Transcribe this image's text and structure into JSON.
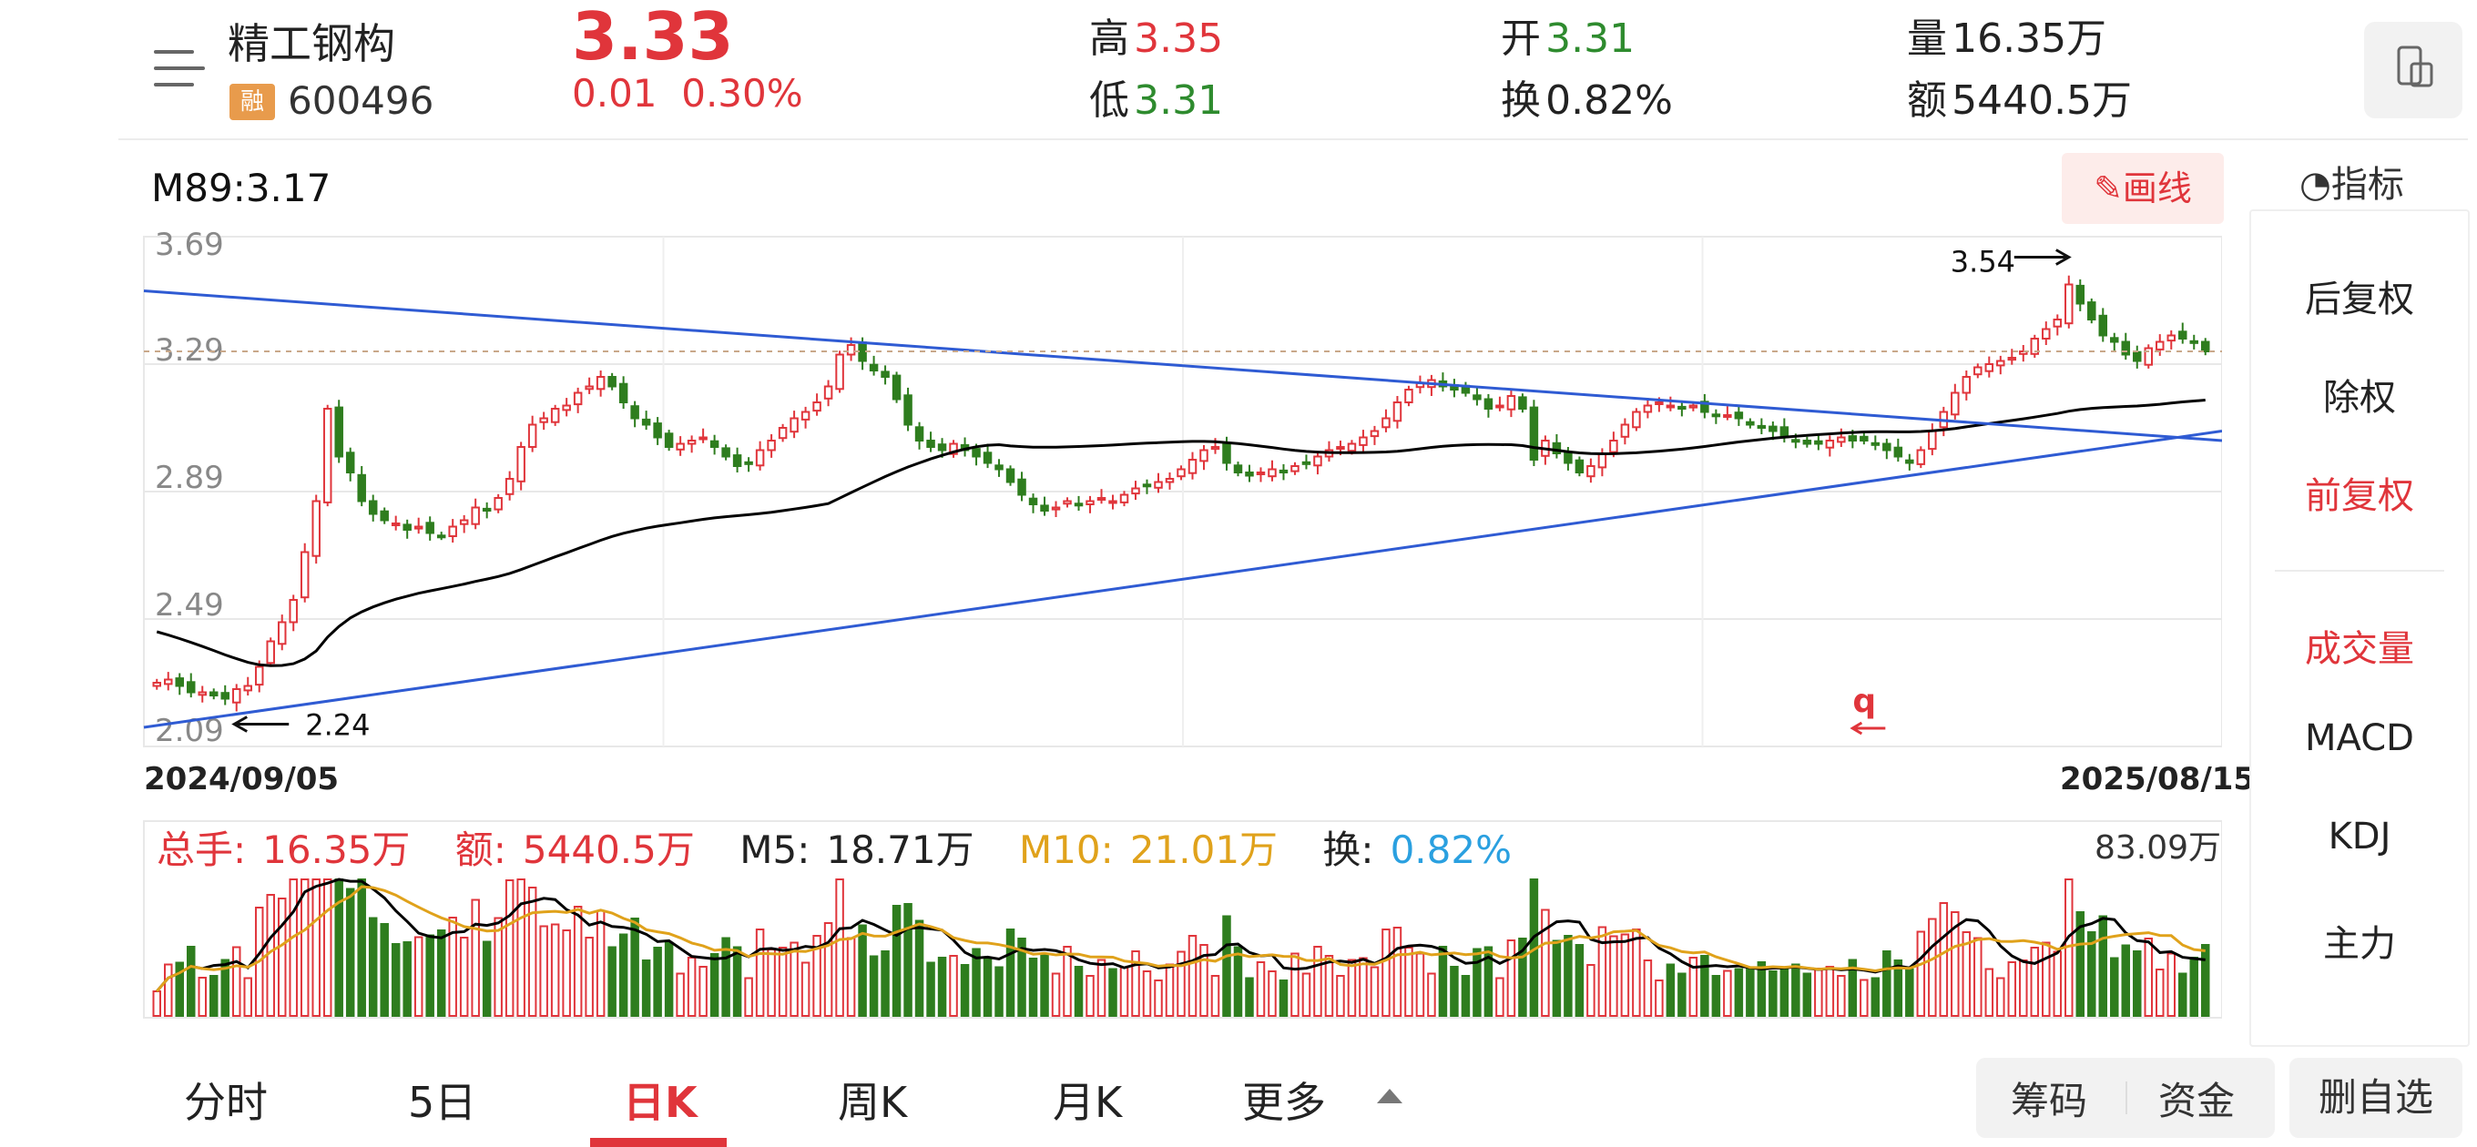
{
  "header": {
    "stock_name": "精工钢构",
    "badge": "融",
    "stock_code": "600496",
    "last_price": "3.33",
    "change": "0.01",
    "change_pct": "0.30%",
    "high_label": "高",
    "high": "3.35",
    "low_label": "低",
    "low": "3.31",
    "open_label": "开",
    "open": "3.31",
    "turnover_label": "换",
    "turnover": "0.82%",
    "volume_label": "量",
    "volume": "16.35万",
    "amount_label": "额",
    "amount": "5440.5万"
  },
  "colors": {
    "up": "#e0353b",
    "down": "#2e7d1e",
    "ma_long": "#000000",
    "trend": "#2f5bd3",
    "ma10": "#e0a21b"
  },
  "chart_header": {
    "ma_label": "M89:3.17",
    "draw_button": "画线"
  },
  "chart_data": [
    {
      "type": "candlestick",
      "y_ticks": [
        "3.69",
        "3.29",
        "2.89",
        "2.49",
        "2.09"
      ],
      "ylim": [
        2.09,
        3.69
      ],
      "x_start_label": "2024/09/05",
      "x_end_label": "2025/08/15",
      "annotations": [
        {
          "text": "3.54",
          "arrow": "right"
        },
        {
          "text": "2.24",
          "arrow": "left"
        },
        {
          "text": "q",
          "arrow": "left"
        }
      ],
      "close_series": [
        2.29,
        2.3,
        2.28,
        2.26,
        2.26,
        2.25,
        2.24,
        2.27,
        2.28,
        2.34,
        2.42,
        2.48,
        2.55,
        2.7,
        2.86,
        3.15,
        3.0,
        2.95,
        2.86,
        2.82,
        2.8,
        2.79,
        2.77,
        2.78,
        2.76,
        2.75,
        2.78,
        2.8,
        2.84,
        2.83,
        2.87,
        2.93,
        3.03,
        3.1,
        3.12,
        3.15,
        3.16,
        3.2,
        3.22,
        3.25,
        3.22,
        3.17,
        3.12,
        3.1,
        3.06,
        3.03,
        3.04,
        3.05,
        3.06,
        3.03,
        3.0,
        2.97,
        2.98,
        3.02,
        3.05,
        3.09,
        3.12,
        3.14,
        3.17,
        3.22,
        3.32,
        3.35,
        3.3,
        3.27,
        3.25,
        3.18,
        3.1,
        3.05,
        3.03,
        3.02,
        3.04,
        3.02,
        3.0,
        2.98,
        2.96,
        2.92,
        2.88,
        2.85,
        2.83,
        2.84,
        2.86,
        2.85,
        2.86,
        2.87,
        2.86,
        2.88,
        2.9,
        2.91,
        2.92,
        2.93,
        2.96,
        2.99,
        3.02,
        3.03,
        2.98,
        2.95,
        2.94,
        2.95,
        2.96,
        2.95,
        2.97,
        2.98,
        3.0,
        3.02,
        3.03,
        3.04,
        3.06,
        3.08,
        3.12,
        3.17,
        3.21,
        3.23,
        3.24,
        3.22,
        3.21,
        3.2,
        3.18,
        3.15,
        3.16,
        3.19,
        3.15,
        2.99,
        3.05,
        3.01,
        2.98,
        2.95,
        2.97,
        3.01,
        3.05,
        3.1,
        3.14,
        3.16,
        3.17,
        3.16,
        3.15,
        3.16,
        3.14,
        3.13,
        3.13,
        3.12,
        3.1,
        3.09,
        3.08,
        3.06,
        3.05,
        3.04,
        3.04,
        3.05,
        3.06,
        3.05,
        3.05,
        3.04,
        3.02,
        3.0,
        2.98,
        3.02,
        3.08,
        3.14,
        3.2,
        3.25,
        3.28,
        3.29,
        3.3,
        3.31,
        3.33,
        3.37,
        3.4,
        3.43,
        3.54,
        3.48,
        3.43,
        3.38,
        3.36,
        3.32,
        3.3,
        3.34,
        3.36,
        3.38,
        3.37,
        3.36,
        3.33
      ],
      "volume": {
        "header": {
          "total_label": "总手:",
          "total": "16.35万",
          "amount_label": "额:",
          "amount": "5440.5万",
          "m5_label": "M5:",
          "m5": "18.71万",
          "m10_label": "M10:",
          "m10": "21.01万",
          "turnover_label": "换:",
          "turnover": "0.82%"
        },
        "max_label": "83.09万"
      }
    }
  ],
  "right_panel": {
    "title": "指标",
    "items": [
      "后复权",
      "除权",
      "前复权",
      "成交量",
      "MACD",
      "KDJ",
      "主力"
    ]
  },
  "tabs": [
    "分时",
    "5日",
    "日K",
    "周K",
    "月K",
    "更多"
  ],
  "active_tab": "日K",
  "bottom_buttons": {
    "chip": "筹码",
    "fund": "资金",
    "remove": "删自选"
  }
}
